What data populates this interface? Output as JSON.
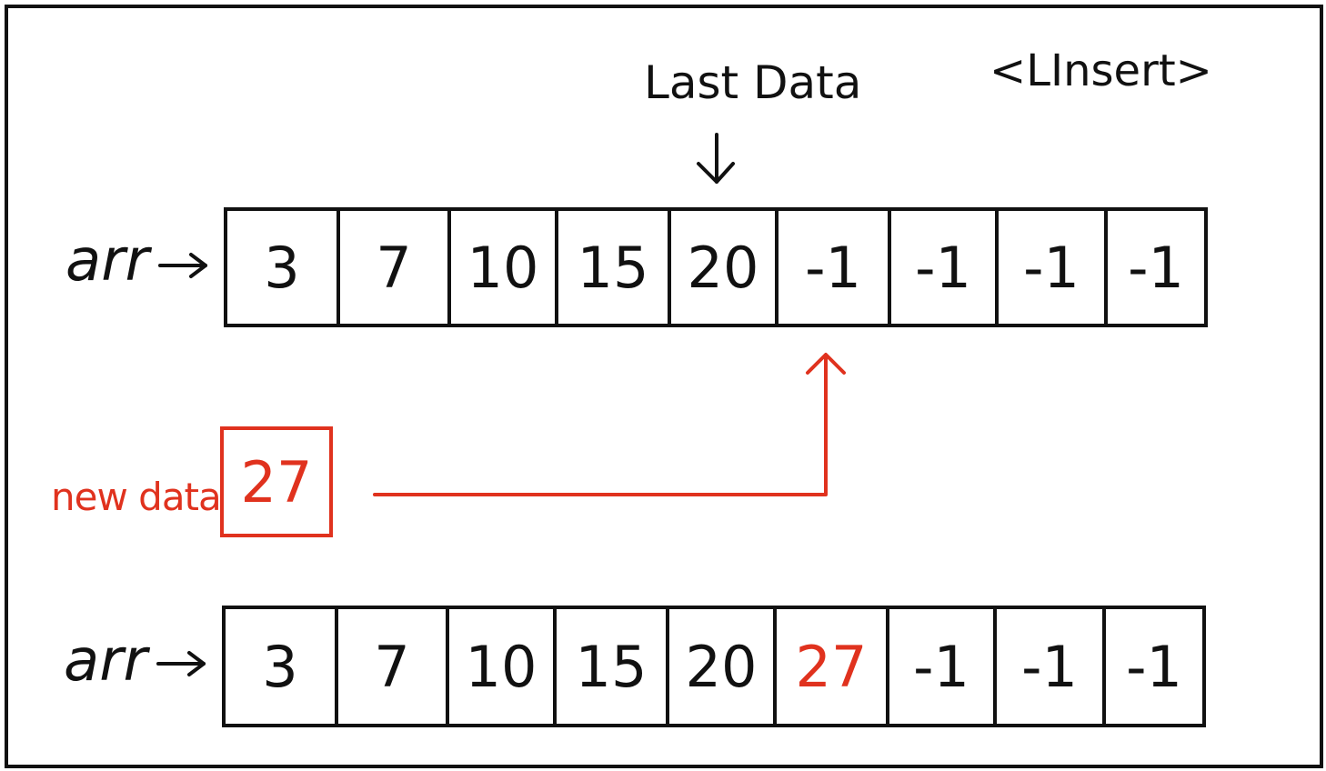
{
  "title": "<LInsert>",
  "last_data_label": "Last Data",
  "arr_label": "arr",
  "new_data_label": "new data",
  "new_data_value": "27",
  "top_array": [
    "3",
    "7",
    "10",
    "15",
    "20",
    "-1",
    "-1",
    "-1",
    "-1"
  ],
  "bottom_array": [
    "3",
    "7",
    "10",
    "15",
    "20",
    "27",
    "-1",
    "-1",
    "-1"
  ],
  "colors": {
    "ink": "#111111",
    "highlight": "#e0321e"
  }
}
